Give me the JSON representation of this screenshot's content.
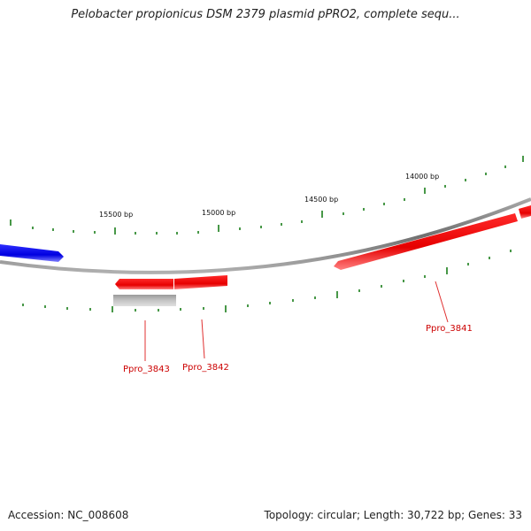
{
  "title": "Pelobacter propionicus DSM 2379 plasmid pPRO2, complete sequ...",
  "tick_labels": [
    "14000 bp",
    "14500 bp",
    "15000 bp",
    "15500 bp"
  ],
  "genes": [
    {
      "label": "Ppro_3841",
      "color": "#ff0000"
    },
    {
      "label": "Ppro_3842",
      "color": "#ff0000"
    },
    {
      "label": "Ppro_3843",
      "color": "#ff0000"
    }
  ],
  "colors": {
    "backbone": "#808080",
    "forward_gene": "#0000ff",
    "reverse_gene": "#ff0000",
    "other_feature": "#b4b4b4",
    "tick": "#1a7f1a",
    "label_line": "#e03030"
  },
  "footer": {
    "accession": "Accession: NC_008608",
    "summary": "Topology: circular; Length: 30,722 bp; Genes: 33"
  }
}
